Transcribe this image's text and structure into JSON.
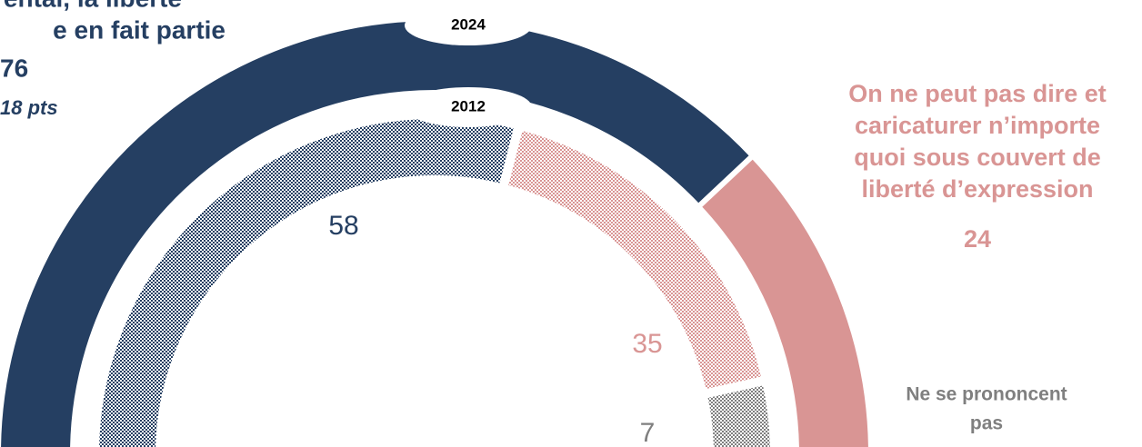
{
  "chart_data": {
    "type": "half-donut",
    "categories": [
      [
        "ental, la liberté",
        "e en fait partie"
      ],
      [
        "On ne peut pas dire et",
        "caricaturer n’importe",
        "quoi sous couvert de",
        "liberté d’expression"
      ],
      [
        "Ne se prononcent",
        "pas"
      ]
    ],
    "colors": [
      "#253f62",
      "#d99594",
      "#7f7f7f"
    ],
    "annotation": "18 pts",
    "rings": [
      {
        "name": "2024",
        "values": [
          76,
          24
        ],
        "hatched": false
      },
      {
        "name": "2012",
        "values": [
          58,
          35,
          7
        ],
        "hatched": true
      }
    ]
  }
}
